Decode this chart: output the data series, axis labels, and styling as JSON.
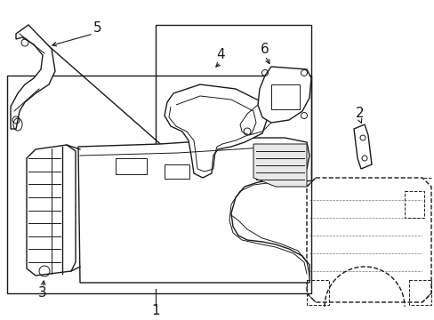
{
  "background_color": "#ffffff",
  "line_color": "#1a1a1a",
  "fill_color": "#f4f4f4",
  "label_color": "#000000",
  "figsize": [
    4.89,
    3.6
  ],
  "dpi": 100,
  "label_fontsize": 11
}
